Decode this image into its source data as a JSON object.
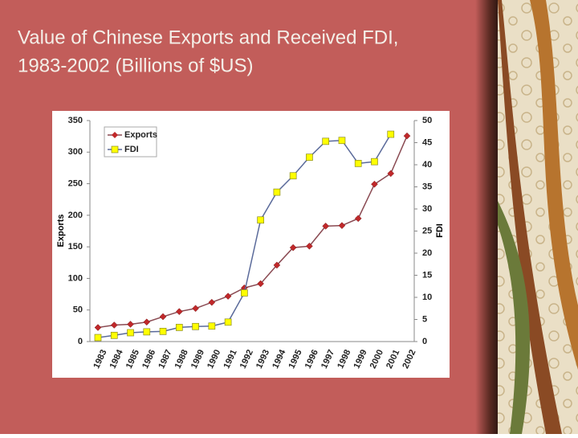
{
  "chart_data": {
    "type": "line",
    "title": "Value of Chinese Exports and Received FDI, 1983-2002 (Billions of $US)",
    "ylabel": "Exports",
    "y2label": "FDI",
    "categories": [
      "1983",
      "1984",
      "1985",
      "1986",
      "1987",
      "1988",
      "1989",
      "1990",
      "1991",
      "1992",
      "1993",
      "1994",
      "1995",
      "1996",
      "1997",
      "1998",
      "1999",
      "2000",
      "2001",
      "2002"
    ],
    "series": [
      {
        "name": "Exports",
        "color": "#c0282a",
        "line_color": "#8a4a52",
        "marker": "diamond",
        "values": [
          22.2,
          26.1,
          27.4,
          30.9,
          39.4,
          47.5,
          52.5,
          62.1,
          71.8,
          85,
          91.7,
          121,
          148.8,
          151.1,
          182.8,
          183.7,
          194.9,
          249.2,
          266.1,
          325.6
        ]
      },
      {
        "name": "FDI",
        "color": "#ffff00",
        "line_color": "#5a6a9a",
        "marker": "square",
        "axis": "y2",
        "values": [
          0.9,
          1.4,
          2.0,
          2.2,
          2.3,
          3.2,
          3.4,
          3.5,
          4.4,
          11.0,
          27.5,
          33.8,
          37.5,
          41.7,
          45.3,
          45.5,
          40.3,
          40.7,
          46.9,
          null
        ]
      }
    ],
    "ylim": [
      0,
      350
    ],
    "yticks": [
      0,
      50,
      100,
      150,
      200,
      250,
      300,
      350
    ],
    "y2lim": [
      0,
      50
    ],
    "y2ticks": [
      0,
      5,
      10,
      15,
      20,
      25,
      30,
      35,
      40,
      45,
      50
    ],
    "legend": "upper left"
  }
}
